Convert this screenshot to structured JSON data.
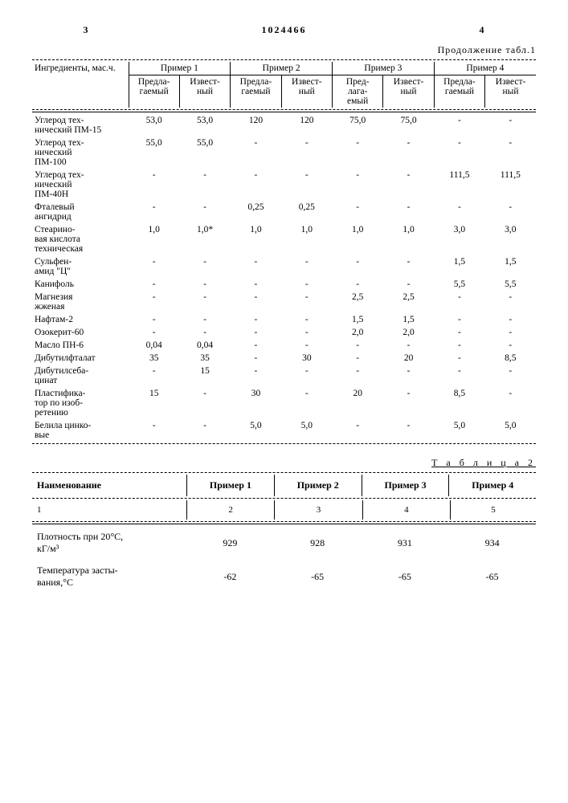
{
  "header": {
    "left_num": "3",
    "doc_number": "1024466",
    "right_num": "4",
    "continuation": "Продолжение табл.1"
  },
  "table1": {
    "col_header": "Ингредиенты, мас.ч.",
    "examples": [
      "Пример 1",
      "Пример 2",
      "Пример 3",
      "Пример 4"
    ],
    "sub": [
      "Предла-\nгаемый",
      "Извест-\nный",
      "Предла-\nгаемый",
      "Извест-\nный",
      "Пред-\nлага-\nемый",
      "Извест-\nный",
      "Предла-\nгаемый",
      "Извест-\nный"
    ],
    "rows": [
      {
        "label": "Углерод тех-\nнический ПМ-15",
        "v": [
          "53,0",
          "53,0",
          "120",
          "120",
          "75,0",
          "75,0",
          "-",
          "-"
        ]
      },
      {
        "label": "Углерод тех-\nнический\nПМ-100",
        "v": [
          "55,0",
          "55,0",
          "-",
          "-",
          "-",
          "-",
          "-",
          "-"
        ]
      },
      {
        "label": "Углерод тех-\nнический\nПМ-40Н",
        "v": [
          "-",
          "-",
          "-",
          "-",
          "-",
          "-",
          "111,5",
          "111,5"
        ]
      },
      {
        "label": "Фталевый\nангидрид",
        "v": [
          "-",
          "-",
          "0,25",
          "0,25",
          "-",
          "-",
          "-",
          "-"
        ]
      },
      {
        "label": "Стеарино-\nвая кислота\nтехническая",
        "v": [
          "1,0",
          "1,0*",
          "1,0",
          "1,0",
          "1,0",
          "1,0",
          "3,0",
          "3,0"
        ]
      },
      {
        "label": "Сульфен-\nамид \"Ц\"",
        "v": [
          "-",
          "-",
          "-",
          "-",
          "-",
          "-",
          "1,5",
          "1,5"
        ]
      },
      {
        "label": "Канифоль",
        "v": [
          "-",
          "-",
          "-",
          "-",
          "-",
          "-",
          "5,5",
          "5,5"
        ]
      },
      {
        "label": "Магнезия\nжженая",
        "v": [
          "-",
          "-",
          "-",
          "-",
          "2,5",
          "2,5",
          "-",
          "-"
        ]
      },
      {
        "label": "Нафтам-2",
        "v": [
          "-",
          "-",
          "-",
          "-",
          "1,5",
          "1,5",
          "-",
          "-"
        ]
      },
      {
        "label": "Озокерит-60",
        "v": [
          "-",
          "-",
          "-",
          "-",
          "2,0",
          "2,0",
          "-",
          "-"
        ]
      },
      {
        "label": "Масло ПН-6",
        "v": [
          "0,04",
          "0,04",
          "-",
          "-",
          "-",
          "-",
          "-",
          "-"
        ]
      },
      {
        "label": "Дибутилфталат",
        "v": [
          "35",
          "35",
          "-",
          "30",
          "-",
          "20",
          "-",
          "8,5"
        ]
      },
      {
        "label": "Дибутилсеба-\nцинат",
        "v": [
          "-",
          "15",
          "-",
          "-",
          "-",
          "-",
          "-",
          "-"
        ]
      },
      {
        "label": "Пластифика-\nтор по изоб-\nретению",
        "v": [
          "15",
          "-",
          "30",
          "-",
          "20",
          "-",
          "8,5",
          "-"
        ]
      },
      {
        "label": "Белила цинко-\nвые",
        "v": [
          "-",
          "-",
          "5,0",
          "5,0",
          "-",
          "-",
          "5,0",
          "5,0"
        ]
      }
    ]
  },
  "table2": {
    "title": "Т а б л и ц а  2",
    "col_header": "Наименование",
    "examples": [
      "Пример 1",
      "Пример 2",
      "Пример 3",
      "Пример 4"
    ],
    "colnums": [
      "1",
      "2",
      "3",
      "4",
      "5"
    ],
    "rows": [
      {
        "label": "Плотность при 20°С,\nкГ/м³",
        "v": [
          "929",
          "928",
          "931",
          "934"
        ]
      },
      {
        "label": "Температура засты-\nвания,°С",
        "v": [
          "-62",
          "-65",
          "-65",
          "-65"
        ]
      }
    ]
  }
}
